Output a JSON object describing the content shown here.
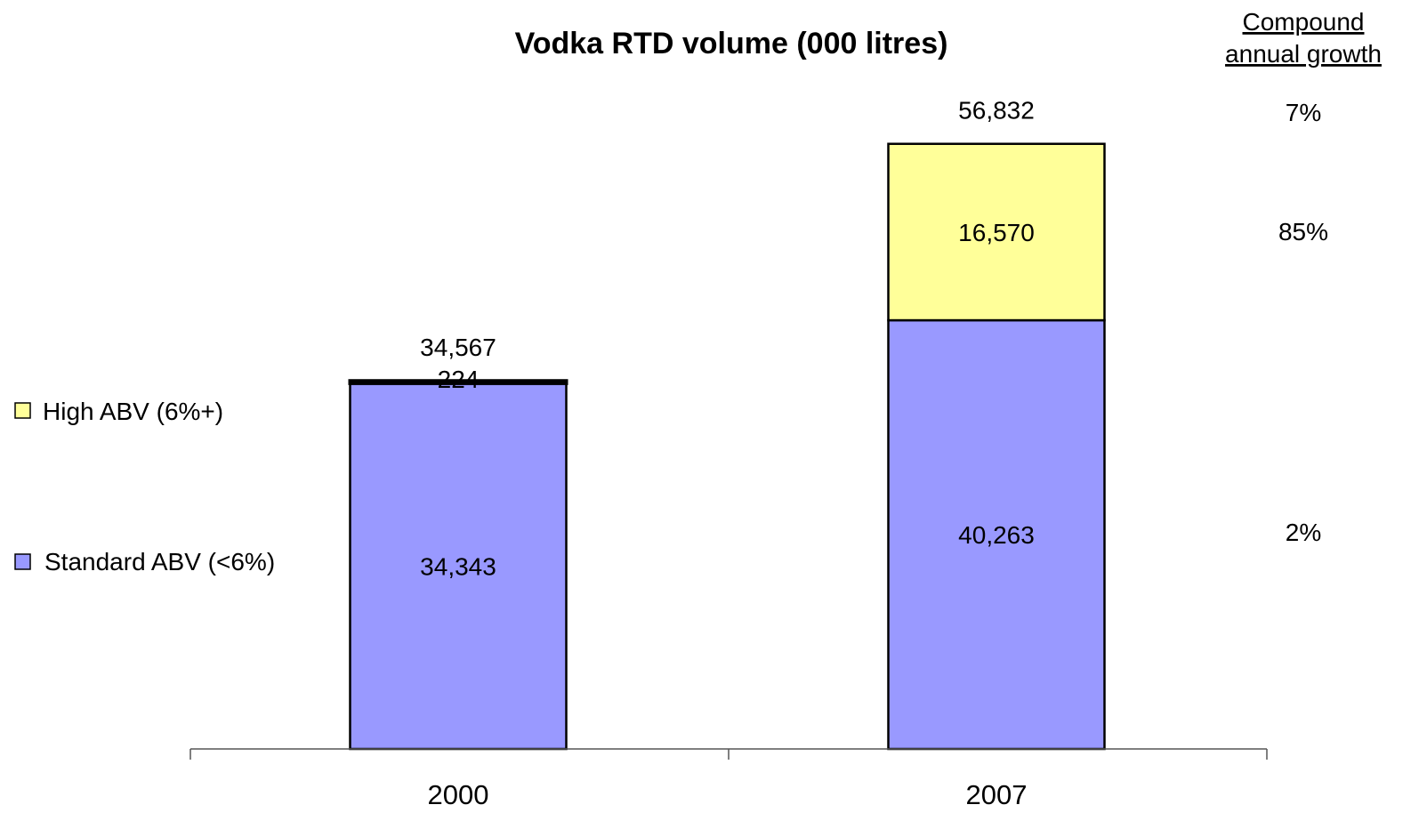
{
  "chart_data": {
    "type": "bar",
    "stacked": true,
    "title": "Vodka RTD volume (000 litres)",
    "xlabel": "",
    "ylabel": "",
    "categories": [
      "2000",
      "2007"
    ],
    "series": [
      {
        "name": "Standard ABV (<6%)",
        "values": [
          34343,
          40263
        ],
        "labels": [
          "34,343",
          "40,263"
        ],
        "color": "#9999FF"
      },
      {
        "name": "High ABV (6%+)",
        "values": [
          224,
          16570
        ],
        "labels": [
          "224",
          "16,570"
        ],
        "color": "#FFFF99"
      }
    ],
    "totals": [
      34567,
      56832
    ],
    "total_labels": [
      "34,567",
      "56,832"
    ],
    "ylim": [
      0,
      68000
    ],
    "grid": false,
    "legend": "left",
    "cagr": {
      "header_line1": "Compound",
      "header_line2": "annual growth",
      "total": "7%",
      "high": "85%",
      "standard": "2%"
    }
  }
}
